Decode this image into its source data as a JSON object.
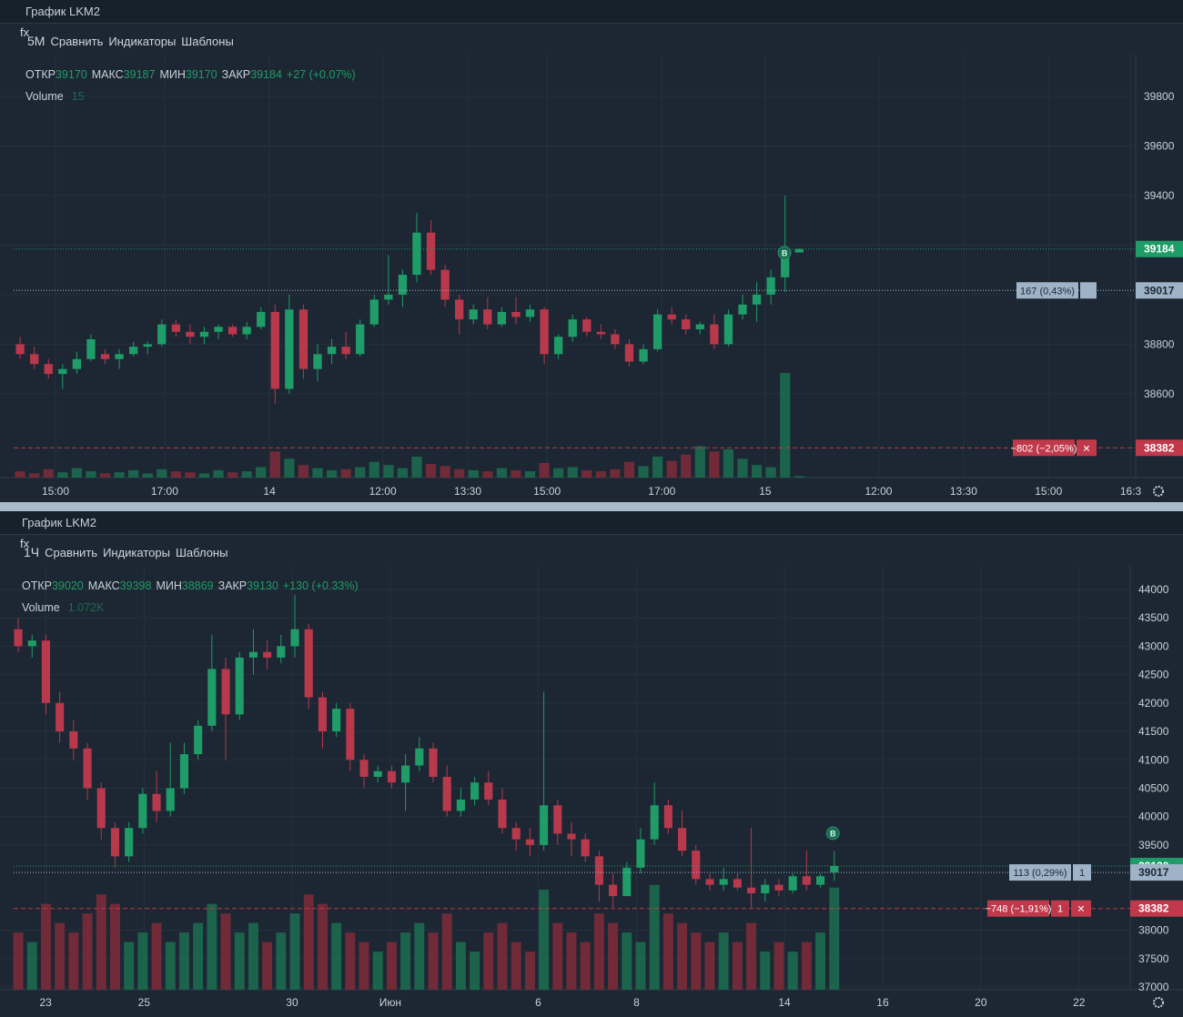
{
  "panels": [
    {
      "title": "График LKM2",
      "timeframe": "5M",
      "toolbar": [
        "Сравнить",
        "Индикаторы",
        "Шаблоны"
      ],
      "legend": {
        "open_label": "ОТКР",
        "open": 39170,
        "high_label": "МАКС",
        "high": 39187,
        "low_label": "МИН",
        "low": 39170,
        "close_label": "ЗАКР",
        "close": 39184,
        "change": "+27 (+0.07%)"
      },
      "volume_label": "Volume",
      "volume": "15",
      "chart_data": {
        "type": "candlestick",
        "grid": true,
        "xlim": [
          -1.42,
          78.75
        ],
        "xticks": [
          {
            "value": 2.5,
            "label": "15:00"
          },
          {
            "value": 10.2,
            "label": "17:00"
          },
          {
            "value": 17.6,
            "label": "14"
          },
          {
            "value": 25.6,
            "label": "12:00"
          },
          {
            "value": 31.6,
            "label": "13:30"
          },
          {
            "value": 37.2,
            "label": "15:00"
          },
          {
            "value": 45.3,
            "label": "17:00"
          },
          {
            "value": 52.6,
            "label": "15"
          },
          {
            "value": 60.6,
            "label": "12:00"
          },
          {
            "value": 66.6,
            "label": "13:30"
          },
          {
            "value": 72.6,
            "label": "15:00"
          },
          {
            "value": 78.4,
            "label": "16:3"
          }
        ],
        "ylim": [
          38262,
          39950
        ],
        "yticks": [
          38600,
          38800,
          39000,
          39200,
          39400,
          39600,
          39800
        ],
        "up_color": "#1f9c68",
        "down_color": "#b8384c",
        "candles": [
          [
            38800,
            38830,
            38740,
            38760
          ],
          [
            38760,
            38790,
            38700,
            38720
          ],
          [
            38720,
            38740,
            38660,
            38680
          ],
          [
            38680,
            38720,
            38620,
            38700
          ],
          [
            38700,
            38770,
            38680,
            38740
          ],
          [
            38740,
            38840,
            38730,
            38820
          ],
          [
            38760,
            38780,
            38720,
            38740
          ],
          [
            38740,
            38780,
            38700,
            38760
          ],
          [
            38760,
            38810,
            38750,
            38790
          ],
          [
            38790,
            38810,
            38760,
            38800
          ],
          [
            38800,
            38900,
            38790,
            38880
          ],
          [
            38880,
            38900,
            38830,
            38850
          ],
          [
            38850,
            38880,
            38800,
            38830
          ],
          [
            38830,
            38870,
            38800,
            38850
          ],
          [
            38850,
            38880,
            38820,
            38870
          ],
          [
            38870,
            38880,
            38830,
            38840
          ],
          [
            38840,
            38890,
            38820,
            38870
          ],
          [
            38870,
            38950,
            38860,
            38930
          ],
          [
            38930,
            38960,
            38560,
            38620
          ],
          [
            38620,
            39000,
            38600,
            38940
          ],
          [
            38940,
            38960,
            38660,
            38700
          ],
          [
            38700,
            38800,
            38650,
            38760
          ],
          [
            38760,
            38820,
            38720,
            38790
          ],
          [
            38790,
            38850,
            38740,
            38760
          ],
          [
            38760,
            38900,
            38750,
            38880
          ],
          [
            38880,
            39000,
            38870,
            38980
          ],
          [
            38980,
            39160,
            38960,
            39000
          ],
          [
            39000,
            39100,
            38950,
            39080
          ],
          [
            39080,
            39330,
            39050,
            39250
          ],
          [
            39250,
            39300,
            39080,
            39100
          ],
          [
            39100,
            39120,
            38950,
            38980
          ],
          [
            38980,
            39000,
            38840,
            38900
          ],
          [
            38900,
            38960,
            38880,
            38940
          ],
          [
            38940,
            38990,
            38860,
            38880
          ],
          [
            38880,
            38950,
            38870,
            38930
          ],
          [
            38930,
            38990,
            38880,
            38910
          ],
          [
            38910,
            38960,
            38890,
            38940
          ],
          [
            38940,
            38950,
            38720,
            38760
          ],
          [
            38760,
            38840,
            38740,
            38830
          ],
          [
            38830,
            38920,
            38810,
            38900
          ],
          [
            38900,
            38910,
            38830,
            38850
          ],
          [
            38850,
            38880,
            38820,
            38840
          ],
          [
            38840,
            38860,
            38780,
            38800
          ],
          [
            38800,
            38820,
            38710,
            38730
          ],
          [
            38730,
            38800,
            38720,
            38780
          ],
          [
            38780,
            38940,
            38770,
            38920
          ],
          [
            38920,
            38950,
            38880,
            38900
          ],
          [
            38900,
            38920,
            38840,
            38860
          ],
          [
            38860,
            38890,
            38840,
            38880
          ],
          [
            38880,
            38920,
            38780,
            38800
          ],
          [
            38800,
            38940,
            38790,
            38920
          ],
          [
            38920,
            39000,
            38900,
            38960
          ],
          [
            38960,
            39050,
            38890,
            39000
          ],
          [
            39000,
            39100,
            38960,
            39070
          ],
          [
            39070,
            39400,
            39010,
            39160
          ],
          [
            39170,
            39187,
            39170,
            39184
          ]
        ],
        "volume_ylim": [
          0,
          4000
        ],
        "volumes": [
          60,
          40,
          80,
          50,
          90,
          60,
          40,
          50,
          70,
          40,
          80,
          60,
          50,
          40,
          70,
          50,
          60,
          100,
          250,
          180,
          120,
          90,
          70,
          80,
          100,
          150,
          120,
          90,
          200,
          130,
          110,
          80,
          70,
          60,
          90,
          70,
          60,
          140,
          90,
          100,
          70,
          60,
          80,
          150,
          110,
          200,
          160,
          220,
          300,
          250,
          270,
          180,
          120,
          100,
          1000,
          15
        ],
        "price_lines": [
          {
            "value": 39184,
            "color": "#1f9c68",
            "style": "dotted"
          },
          {
            "value": 39017,
            "color": "#9fb3c8",
            "style": "dotted",
            "note": "167 (0,43%)"
          },
          {
            "value": 38382,
            "color": "#c0394b",
            "style": "dashed",
            "note": "−802 (−2,05%)",
            "close": "×"
          }
        ],
        "markers": [
          {
            "label": "B",
            "x": 53.96,
            "price": 39169
          }
        ]
      }
    },
    {
      "title": "График LKM2",
      "timeframe": "1Ч",
      "toolbar": [
        "Сравнить",
        "Индикаторы",
        "Шаблоны"
      ],
      "legend": {
        "open_label": "ОТКР",
        "open": 39020,
        "high_label": "МАКС",
        "high": 39398,
        "low_label": "МИН",
        "low": 38869,
        "close_label": "ЗАКР",
        "close": 39130,
        "change": "+130 (+0.33%)"
      },
      "volume_label": "Volume",
      "volume": "1.072K",
      "chart_data": {
        "type": "candlestick",
        "grid": true,
        "xlim": [
          -1.32,
          80.4
        ],
        "xticks": [
          {
            "value": 1.98,
            "label": "23"
          },
          {
            "value": 9.1,
            "label": "25"
          },
          {
            "value": 19.8,
            "label": "30"
          },
          {
            "value": 26.9,
            "label": "Июн"
          },
          {
            "value": 37.6,
            "label": "6"
          },
          {
            "value": 44.7,
            "label": "8"
          },
          {
            "value": 55.4,
            "label": "14"
          },
          {
            "value": 62.5,
            "label": "16"
          },
          {
            "value": 69.6,
            "label": "20"
          },
          {
            "value": 76.7,
            "label": "22"
          }
        ],
        "ylim": [
          36952,
          44336
        ],
        "yticks": [
          37000,
          37500,
          38000,
          39500,
          40000,
          40500,
          41000,
          41500,
          42000,
          42500,
          43000,
          43500,
          44000
        ],
        "up_color": "#1f9c68",
        "down_color": "#b8384c",
        "candles": [
          [
            43300,
            43500,
            42900,
            43000
          ],
          [
            43000,
            43200,
            42800,
            43100
          ],
          [
            43100,
            43200,
            41800,
            42000
          ],
          [
            42000,
            42200,
            41300,
            41500
          ],
          [
            41500,
            41700,
            41000,
            41200
          ],
          [
            41200,
            41300,
            40300,
            40500
          ],
          [
            40500,
            40600,
            39600,
            39800
          ],
          [
            39800,
            39900,
            39100,
            39300
          ],
          [
            39300,
            39900,
            39200,
            39800
          ],
          [
            39800,
            40500,
            39700,
            40400
          ],
          [
            40400,
            40800,
            39900,
            40100
          ],
          [
            40100,
            41300,
            40000,
            40500
          ],
          [
            40500,
            41300,
            40400,
            41100
          ],
          [
            41100,
            41700,
            41000,
            41600
          ],
          [
            41600,
            43200,
            41500,
            42600
          ],
          [
            42600,
            42800,
            41000,
            41800
          ],
          [
            41800,
            42900,
            41700,
            42800
          ],
          [
            42800,
            43300,
            42500,
            42900
          ],
          [
            42900,
            43100,
            42600,
            42800
          ],
          [
            42800,
            43200,
            42700,
            43000
          ],
          [
            43000,
            43900,
            42800,
            43300
          ],
          [
            43300,
            43400,
            41900,
            42100
          ],
          [
            42100,
            42200,
            41200,
            41500
          ],
          [
            41500,
            42000,
            41400,
            41900
          ],
          [
            41900,
            42000,
            40800,
            41000
          ],
          [
            41000,
            41100,
            40500,
            40700
          ],
          [
            40700,
            40900,
            40600,
            40800
          ],
          [
            40800,
            40900,
            40500,
            40600
          ],
          [
            40600,
            41100,
            40100,
            40900
          ],
          [
            40900,
            41400,
            40800,
            41200
          ],
          [
            41200,
            41300,
            40600,
            40700
          ],
          [
            40700,
            40900,
            40000,
            40100
          ],
          [
            40100,
            40500,
            40000,
            40300
          ],
          [
            40300,
            40700,
            40200,
            40600
          ],
          [
            40600,
            40800,
            40200,
            40300
          ],
          [
            40300,
            40500,
            39700,
            39800
          ],
          [
            39800,
            39900,
            39400,
            39600
          ],
          [
            39600,
            39800,
            39300,
            39500
          ],
          [
            39500,
            42200,
            39400,
            40200
          ],
          [
            40200,
            40300,
            39500,
            39700
          ],
          [
            39700,
            39900,
            39300,
            39600
          ],
          [
            39600,
            39700,
            39200,
            39300
          ],
          [
            39300,
            39400,
            38500,
            38800
          ],
          [
            38800,
            39000,
            38400,
            38600
          ],
          [
            38600,
            39200,
            38600,
            39100
          ],
          [
            39100,
            39800,
            39000,
            39600
          ],
          [
            39600,
            40600,
            39500,
            40200
          ],
          [
            40200,
            40300,
            39700,
            39800
          ],
          [
            39800,
            40100,
            39300,
            39400
          ],
          [
            39400,
            39500,
            38800,
            38900
          ],
          [
            38900,
            39000,
            38700,
            38800
          ],
          [
            38800,
            39100,
            38700,
            38900
          ],
          [
            38900,
            39000,
            38700,
            38750
          ],
          [
            38750,
            39800,
            38400,
            38650
          ],
          [
            38650,
            38900,
            38500,
            38800
          ],
          [
            38800,
            38900,
            38600,
            38700
          ],
          [
            38700,
            39000,
            38650,
            38950
          ],
          [
            38950,
            39400,
            38700,
            38800
          ],
          [
            38800,
            39000,
            38750,
            38950
          ],
          [
            39020,
            39398,
            38869,
            39130
          ]
        ],
        "volume_ylim": [
          0,
          4400
        ],
        "volumes": [
          600,
          500,
          900,
          700,
          600,
          800,
          1000,
          900,
          500,
          600,
          700,
          500,
          600,
          700,
          900,
          800,
          600,
          700,
          500,
          600,
          800,
          1000,
          900,
          700,
          600,
          500,
          400,
          500,
          600,
          700,
          600,
          800,
          500,
          400,
          600,
          700,
          500,
          400,
          1050,
          700,
          600,
          500,
          800,
          700,
          600,
          500,
          1100,
          800,
          700,
          600,
          500,
          600,
          500,
          700,
          400,
          500,
          400,
          500,
          600,
          1072
        ],
        "price_lines": [
          {
            "value": 39130,
            "color": "#1f9c68",
            "style": "dotted"
          },
          {
            "value": 39017,
            "color": "#9fb3c8",
            "style": "dotted",
            "note": "113 (0,29%)",
            "qty": "1"
          },
          {
            "value": 38382,
            "color": "#c0394b",
            "style": "dashed",
            "note": "−748 (−1,91%)",
            "qty": "1",
            "close": "×"
          }
        ],
        "markers": [
          {
            "label": "B",
            "x": 58.9,
            "price": 39707
          }
        ]
      }
    }
  ]
}
